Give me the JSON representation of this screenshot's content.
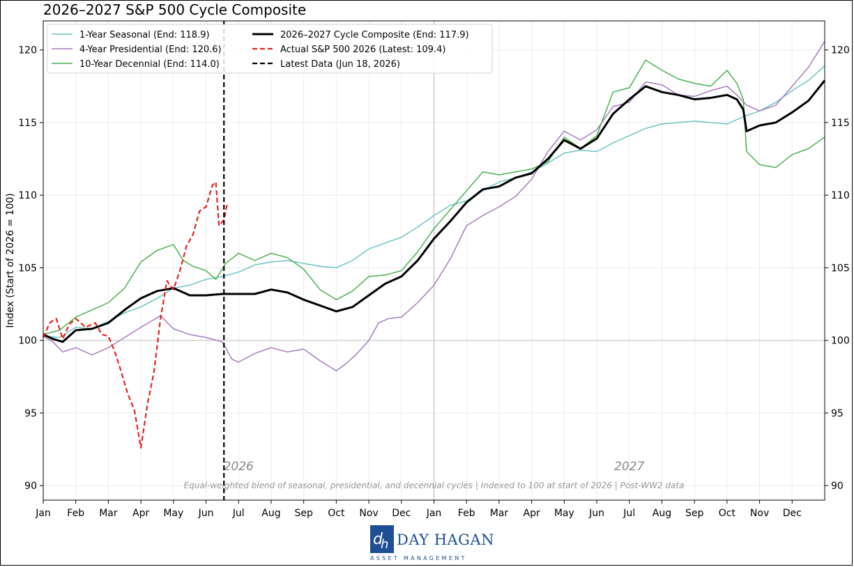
{
  "title": "2026–2027 S&P 500 Cycle Composite",
  "logo": {
    "name": "DAY HAGAN",
    "subtitle": "ASSET MANAGEMENT",
    "mark": "dh"
  },
  "chart_data": {
    "type": "line",
    "ylabel": "Index (Start of 2026 = 100)",
    "ylim": [
      89,
      122
    ],
    "yticks": [
      90,
      95,
      100,
      105,
      110,
      115,
      120
    ],
    "xlim": [
      0,
      24
    ],
    "xticks": [
      {
        "m": 0,
        "label": "Jan"
      },
      {
        "m": 1,
        "label": "Feb"
      },
      {
        "m": 2,
        "label": "Mar"
      },
      {
        "m": 3,
        "label": "Apr"
      },
      {
        "m": 4,
        "label": "May"
      },
      {
        "m": 5,
        "label": "Jun"
      },
      {
        "m": 6,
        "label": "Jul"
      },
      {
        "m": 7,
        "label": "Aug"
      },
      {
        "m": 8,
        "label": "Sep"
      },
      {
        "m": 9,
        "label": "Oct"
      },
      {
        "m": 10,
        "label": "Nov"
      },
      {
        "m": 11,
        "label": "Dec"
      },
      {
        "m": 12,
        "label": "Jan"
      },
      {
        "m": 13,
        "label": "Feb"
      },
      {
        "m": 14,
        "label": "Mar"
      },
      {
        "m": 15,
        "label": "Apr"
      },
      {
        "m": 16,
        "label": "May"
      },
      {
        "m": 17,
        "label": "Jun"
      },
      {
        "m": 18,
        "label": "Jul"
      },
      {
        "m": 19,
        "label": "Aug"
      },
      {
        "m": 20,
        "label": "Sep"
      },
      {
        "m": 21,
        "label": "Oct"
      },
      {
        "m": 22,
        "label": "Nov"
      },
      {
        "m": 23,
        "label": "Dec"
      }
    ],
    "year_labels": [
      {
        "m": 6,
        "label": "2026"
      },
      {
        "m": 18,
        "label": "2027"
      }
    ],
    "year_boundary_m": 12,
    "latest_data_m": 5.55,
    "baseline": 100,
    "grid": true,
    "legend_position": "top-left",
    "footnote": "Equal-weighted blend of seasonal, presidential, and decennial cycles  |  Indexed to 100 at start of 2026  |  Post-WW2 data",
    "series": [
      {
        "name": "1-Year Seasonal (End: 118.9)",
        "color": "#6cc3c4",
        "width": 1.5,
        "dash": "",
        "points": [
          [
            0,
            100.3
          ],
          [
            0.5,
            100.2
          ],
          [
            1,
            100.9
          ],
          [
            1.5,
            100.8
          ],
          [
            2,
            101.3
          ],
          [
            2.5,
            101.9
          ],
          [
            3,
            102.3
          ],
          [
            3.5,
            102.9
          ],
          [
            4,
            103.6
          ],
          [
            4.5,
            103.8
          ],
          [
            5,
            104.2
          ],
          [
            5.5,
            104.4
          ],
          [
            6,
            104.7
          ],
          [
            6.5,
            105.2
          ],
          [
            7,
            105.4
          ],
          [
            7.5,
            105.5
          ],
          [
            8,
            105.3
          ],
          [
            8.5,
            105.1
          ],
          [
            9,
            105
          ],
          [
            9.5,
            105.5
          ],
          [
            10,
            106.3
          ],
          [
            10.5,
            106.7
          ],
          [
            11,
            107.1
          ],
          [
            11.5,
            107.8
          ],
          [
            12,
            108.6
          ],
          [
            12.5,
            109.3
          ],
          [
            13,
            109.6
          ],
          [
            13.5,
            110.3
          ],
          [
            14,
            110.9
          ],
          [
            14.5,
            111.2
          ],
          [
            15,
            111.6
          ],
          [
            15.5,
            112.2
          ],
          [
            16,
            112.9
          ],
          [
            16.5,
            113.1
          ],
          [
            17,
            113
          ],
          [
            17.5,
            113.6
          ],
          [
            18,
            114.1
          ],
          [
            18.5,
            114.6
          ],
          [
            19,
            114.9
          ],
          [
            19.5,
            115
          ],
          [
            20,
            115.1
          ],
          [
            20.5,
            115
          ],
          [
            21,
            114.9
          ],
          [
            21.5,
            115.4
          ],
          [
            22,
            115.8
          ],
          [
            22.5,
            116.4
          ],
          [
            23,
            117.2
          ],
          [
            23.5,
            117.9
          ],
          [
            24,
            118.9
          ]
        ]
      },
      {
        "name": "4-Year Presidential (End: 120.6)",
        "color": "#a77bbe",
        "width": 1.5,
        "dash": "",
        "points": [
          [
            0,
            100.3
          ],
          [
            0.3,
            99.9
          ],
          [
            0.6,
            99.2
          ],
          [
            1,
            99.5
          ],
          [
            1.5,
            99
          ],
          [
            2,
            99.5
          ],
          [
            2.5,
            100.2
          ],
          [
            3,
            100.9
          ],
          [
            3.3,
            101.3
          ],
          [
            3.6,
            101.7
          ],
          [
            4,
            100.8
          ],
          [
            4.5,
            100.4
          ],
          [
            5,
            100.2
          ],
          [
            5.5,
            99.9
          ],
          [
            5.8,
            98.7
          ],
          [
            6,
            98.5
          ],
          [
            6.5,
            99.1
          ],
          [
            7,
            99.5
          ],
          [
            7.5,
            99.2
          ],
          [
            8,
            99.4
          ],
          [
            8.5,
            98.6
          ],
          [
            9,
            97.9
          ],
          [
            9.3,
            98.4
          ],
          [
            9.6,
            99
          ],
          [
            10,
            100
          ],
          [
            10.3,
            101.2
          ],
          [
            10.6,
            101.5
          ],
          [
            11,
            101.6
          ],
          [
            11.5,
            102.6
          ],
          [
            12,
            103.8
          ],
          [
            12.5,
            105.6
          ],
          [
            13,
            107.9
          ],
          [
            13.5,
            108.6
          ],
          [
            14,
            109.2
          ],
          [
            14.5,
            109.9
          ],
          [
            15,
            111.1
          ],
          [
            15.5,
            113
          ],
          [
            16,
            114.4
          ],
          [
            16.5,
            113.8
          ],
          [
            17,
            114.5
          ],
          [
            17.5,
            116.1
          ],
          [
            18,
            116.4
          ],
          [
            18.5,
            117.8
          ],
          [
            19,
            117.6
          ],
          [
            19.5,
            116.9
          ],
          [
            20,
            116.8
          ],
          [
            20.5,
            117.2
          ],
          [
            21,
            117.5
          ],
          [
            21.3,
            116.9
          ],
          [
            21.6,
            116.2
          ],
          [
            22,
            115.8
          ],
          [
            22.5,
            116.2
          ],
          [
            23,
            117.5
          ],
          [
            23.5,
            118.8
          ],
          [
            24,
            120.6
          ]
        ]
      },
      {
        "name": "10-Year Decennial (End: 114.0)",
        "color": "#4caf50",
        "width": 1.5,
        "dash": "",
        "points": [
          [
            0,
            100.4
          ],
          [
            0.5,
            100.7
          ],
          [
            1,
            101.6
          ],
          [
            1.5,
            102.1
          ],
          [
            2,
            102.6
          ],
          [
            2.5,
            103.6
          ],
          [
            3,
            105.4
          ],
          [
            3.5,
            106.2
          ],
          [
            4,
            106.6
          ],
          [
            4.3,
            105.5
          ],
          [
            4.6,
            105.1
          ],
          [
            5,
            104.8
          ],
          [
            5.3,
            104.2
          ],
          [
            5.6,
            105.3
          ],
          [
            6,
            106
          ],
          [
            6.5,
            105.5
          ],
          [
            7,
            106
          ],
          [
            7.5,
            105.7
          ],
          [
            8,
            104.9
          ],
          [
            8.5,
            103.5
          ],
          [
            9,
            102.8
          ],
          [
            9.5,
            103.4
          ],
          [
            10,
            104.4
          ],
          [
            10.5,
            104.5
          ],
          [
            11,
            104.8
          ],
          [
            11.5,
            106.1
          ],
          [
            12,
            107.7
          ],
          [
            12.5,
            109
          ],
          [
            13,
            110.3
          ],
          [
            13.5,
            111.6
          ],
          [
            14,
            111.4
          ],
          [
            14.5,
            111.6
          ],
          [
            15,
            111.8
          ],
          [
            15.5,
            112.3
          ],
          [
            16,
            114
          ],
          [
            16.5,
            113.2
          ],
          [
            17,
            114.1
          ],
          [
            17.5,
            117.1
          ],
          [
            18,
            117.4
          ],
          [
            18.5,
            119.3
          ],
          [
            19,
            118.6
          ],
          [
            19.5,
            118
          ],
          [
            20,
            117.7
          ],
          [
            20.5,
            117.5
          ],
          [
            21,
            118.6
          ],
          [
            21.3,
            117.7
          ],
          [
            21.5,
            116.6
          ],
          [
            21.6,
            113
          ],
          [
            22,
            112.1
          ],
          [
            22.5,
            111.9
          ],
          [
            23,
            112.8
          ],
          [
            23.5,
            113.2
          ],
          [
            24,
            114
          ]
        ]
      },
      {
        "name": "2026–2027 Cycle Composite (End: 117.9)",
        "color": "#000000",
        "width": 3,
        "dash": "",
        "points": [
          [
            0,
            100.4
          ],
          [
            0.3,
            100.1
          ],
          [
            0.6,
            99.9
          ],
          [
            1,
            100.7
          ],
          [
            1.5,
            100.8
          ],
          [
            2,
            101.2
          ],
          [
            2.5,
            102.1
          ],
          [
            3,
            102.9
          ],
          [
            3.5,
            103.4
          ],
          [
            4,
            103.6
          ],
          [
            4.5,
            103.1
          ],
          [
            5,
            103.1
          ],
          [
            5.5,
            103.2
          ],
          [
            6,
            103.2
          ],
          [
            6.5,
            103.2
          ],
          [
            7,
            103.5
          ],
          [
            7.5,
            103.3
          ],
          [
            8,
            102.8
          ],
          [
            8.5,
            102.4
          ],
          [
            9,
            102
          ],
          [
            9.5,
            102.3
          ],
          [
            10,
            103.1
          ],
          [
            10.5,
            103.9
          ],
          [
            11,
            104.4
          ],
          [
            11.5,
            105.5
          ],
          [
            12,
            107
          ],
          [
            12.5,
            108.2
          ],
          [
            13,
            109.5
          ],
          [
            13.5,
            110.4
          ],
          [
            14,
            110.6
          ],
          [
            14.5,
            111.2
          ],
          [
            15,
            111.5
          ],
          [
            15.5,
            112.5
          ],
          [
            16,
            113.8
          ],
          [
            16.5,
            113.2
          ],
          [
            17,
            113.9
          ],
          [
            17.5,
            115.6
          ],
          [
            18,
            116.6
          ],
          [
            18.5,
            117.5
          ],
          [
            19,
            117.1
          ],
          [
            19.5,
            116.9
          ],
          [
            20,
            116.6
          ],
          [
            20.5,
            116.7
          ],
          [
            21,
            116.9
          ],
          [
            21.3,
            116.6
          ],
          [
            21.5,
            115.9
          ],
          [
            21.6,
            114.4
          ],
          [
            22,
            114.8
          ],
          [
            22.5,
            115
          ],
          [
            23,
            115.7
          ],
          [
            23.5,
            116.5
          ],
          [
            24,
            117.9
          ]
        ]
      },
      {
        "name": "Actual S&P 500 2026 (Latest: 109.4)",
        "color": "#e8201c",
        "width": 2.2,
        "dash": "7 4",
        "points": [
          [
            0,
            100.2
          ],
          [
            0.2,
            101.2
          ],
          [
            0.4,
            101.5
          ],
          [
            0.6,
            100.1
          ],
          [
            0.8,
            101.1
          ],
          [
            1,
            101.5
          ],
          [
            1.3,
            100.9
          ],
          [
            1.6,
            101.2
          ],
          [
            1.8,
            100.4
          ],
          [
            2,
            100.3
          ],
          [
            2.2,
            99.2
          ],
          [
            2.4,
            97.8
          ],
          [
            2.6,
            96.3
          ],
          [
            2.8,
            95.2
          ],
          [
            3,
            92.6
          ],
          [
            3.2,
            95.6
          ],
          [
            3.4,
            97.8
          ],
          [
            3.6,
            101.5
          ],
          [
            3.8,
            104.1
          ],
          [
            4,
            103.5
          ],
          [
            4.2,
            104.8
          ],
          [
            4.4,
            106.5
          ],
          [
            4.6,
            107.3
          ],
          [
            4.8,
            108.9
          ],
          [
            5,
            109.2
          ],
          [
            5.2,
            110.7
          ],
          [
            5.3,
            110.9
          ],
          [
            5.4,
            107.9
          ],
          [
            5.55,
            108.3
          ],
          [
            5.65,
            109.4
          ]
        ]
      }
    ]
  }
}
